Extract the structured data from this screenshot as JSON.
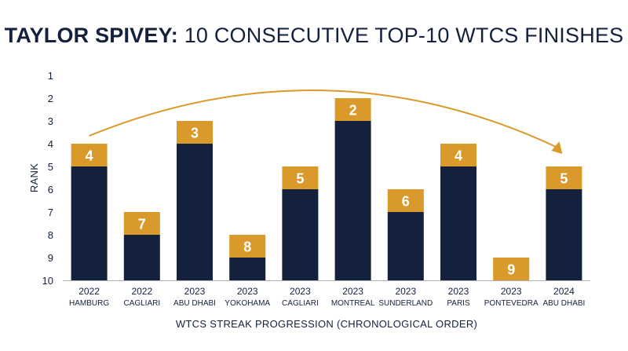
{
  "title": {
    "bold_part": "TAYLOR SPIVEY:",
    "rest_part": "10 CONSECUTIVE TOP-10 WTCS FINISHES"
  },
  "colors": {
    "navy": "#14213d",
    "gold": "#d99a2b",
    "axis": "#b0b0b0"
  },
  "chart_data": {
    "type": "bar",
    "title": "TAYLOR SPIVEY: 10 CONSECUTIVE TOP-10 WTCS FINISHES",
    "xlabel": "WTCS STREAK PROGRESSION (CHRONOLOGICAL ORDER)",
    "ylabel": "RANK",
    "ylim": [
      1,
      10
    ],
    "y_inverted": true,
    "y_ticks": [
      "1",
      "2",
      "3",
      "4",
      "5",
      "6",
      "7",
      "8",
      "9",
      "10"
    ],
    "categories": [
      {
        "year": "2022",
        "location": "HAMBURG"
      },
      {
        "year": "2022",
        "location": "CAGLIARI"
      },
      {
        "year": "2023",
        "location": "ABU DHABI"
      },
      {
        "year": "2023",
        "location": "YOKOHAMA"
      },
      {
        "year": "2023",
        "location": "CAGLIARI"
      },
      {
        "year": "2023",
        "location": "MONTREAL"
      },
      {
        "year": "2023",
        "location": "SUNDERLAND"
      },
      {
        "year": "2023",
        "location": "PARIS"
      },
      {
        "year": "2023",
        "location": "PONTEVEDRA"
      },
      {
        "year": "2024",
        "location": "ABU DHABI"
      }
    ],
    "values": [
      4,
      7,
      3,
      8,
      5,
      2,
      6,
      4,
      9,
      5
    ],
    "labels": [
      "4",
      "7",
      "3",
      "8",
      "5",
      "2",
      "6",
      "4",
      "9",
      "5"
    ],
    "arrow": {
      "from": "2022 HAMBURG",
      "to": "2024 ABU DHABI"
    },
    "grid": false
  }
}
